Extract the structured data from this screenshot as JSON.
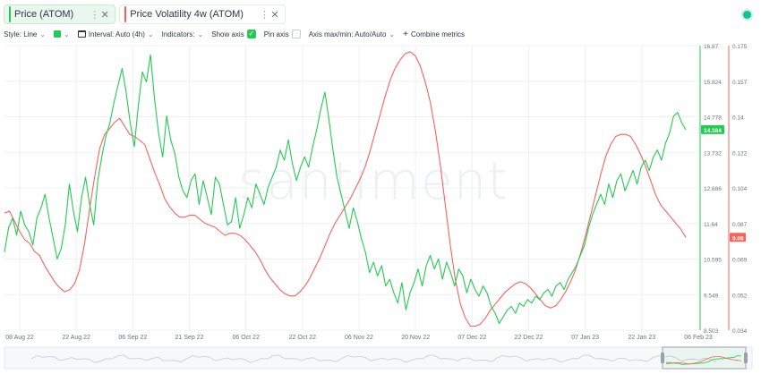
{
  "tabs": [
    {
      "label": "Price (ATOM)",
      "color": "#26c953",
      "active": true
    },
    {
      "label": "Price Volatility 4w (ATOM)",
      "color": "#ff5b5b",
      "active": false
    }
  ],
  "toolbar": {
    "style": "Style: Line",
    "interval": "Interval: Auto (4h)",
    "indicators": "Indicators:",
    "show_axis": "Show axis",
    "pin_axis": "Pin axis",
    "axis_maxmin": "Axis max/min: Auto/Auto",
    "combine": "Combine metrics"
  },
  "watermark": "santiment",
  "chart_data": {
    "type": "line",
    "x_ticks": [
      "08 Aug 22",
      "22 Aug 22",
      "06 Sep 22",
      "21 Sep 22",
      "06 Oct 22",
      "22 Oct 22",
      "06 Nov 22",
      "20 Nov 22",
      "07 Dec 22",
      "22 Dec 22",
      "07 Jan 23",
      "22 Jan 23",
      "06 Feb 23"
    ],
    "price_axis_ticks": [
      "16.87",
      "15.824",
      "14.778",
      "13.732",
      "12.686",
      "11.64",
      "10.595",
      "9.549",
      "8.503"
    ],
    "volatility_axis_ticks": [
      "0.175",
      "0.157",
      "0.14",
      "0.122",
      "0.104",
      "0.087",
      "0.069",
      "0.052",
      "0.034"
    ],
    "price_ylim": [
      8.503,
      16.87
    ],
    "volatility_ylim": [
      0.034,
      0.175
    ],
    "price_last": "14.384",
    "volatility_last": "0.08",
    "series": [
      {
        "name": "Price (ATOM)",
        "color": "#26c953",
        "values": [
          10.8,
          11.5,
          11.8,
          11.3,
          12.0,
          11.6,
          11.4,
          11.0,
          11.8,
          12.1,
          12.5,
          11.8,
          11.2,
          10.6,
          10.9,
          11.6,
          12.8,
          12.0,
          11.4,
          12.4,
          13.0,
          12.2,
          11.6,
          12.9,
          13.6,
          14.2,
          14.6,
          15.2,
          15.7,
          16.2,
          15.5,
          14.6,
          13.9,
          15.1,
          16.1,
          15.8,
          16.6,
          15.3,
          14.3,
          13.6,
          14.8,
          14.1,
          13.7,
          13.0,
          12.6,
          12.4,
          12.9,
          13.1,
          12.2,
          12.9,
          12.4,
          11.9,
          13.0,
          12.8,
          12.2,
          11.6,
          11.7,
          12.4,
          11.5,
          11.9,
          12.4,
          12.1,
          12.8,
          12.5,
          12.2,
          12.7,
          13.0,
          13.3,
          13.8,
          13.5,
          14.1,
          13.4,
          12.9,
          13.3,
          13.6,
          13.3,
          13.9,
          14.4,
          15.0,
          15.5,
          14.7,
          13.8,
          13.0,
          12.5,
          12.0,
          11.5,
          12.1,
          11.7,
          11.2,
          10.8,
          10.2,
          10.5,
          10.1,
          10.4,
          9.8,
          10.0,
          9.6,
          9.3,
          9.9,
          9.1,
          9.6,
          9.9,
          10.3,
          9.8,
          10.4,
          10.7,
          10.3,
          10.6,
          10.0,
          10.5,
          10.2,
          9.8,
          10.3,
          10.1,
          9.6,
          10.0,
          9.7,
          9.5,
          9.8,
          9.6,
          9.2,
          9.0,
          8.7,
          8.9,
          9.1,
          9.2,
          9.0,
          9.3,
          9.2,
          9.4,
          9.3,
          9.5,
          9.4,
          9.6,
          9.7,
          9.5,
          9.8,
          9.9,
          9.7,
          10.0,
          10.2,
          10.4,
          10.7,
          11.0,
          11.5,
          11.9,
          12.2,
          12.5,
          12.2,
          12.8,
          12.4,
          12.9,
          13.1,
          12.6,
          12.9,
          13.2,
          12.8,
          13.3,
          13.5,
          13.2,
          13.6,
          13.8,
          13.5,
          14.0,
          14.3,
          14.8,
          14.9,
          14.6,
          14.4
        ]
      },
      {
        "name": "Price Volatility 4w (ATOM)",
        "color": "#f4645d",
        "values": [
          0.092,
          0.093,
          0.088,
          0.083,
          0.079,
          0.077,
          0.073,
          0.071,
          0.066,
          0.062,
          0.058,
          0.055,
          0.053,
          0.054,
          0.057,
          0.064,
          0.077,
          0.094,
          0.11,
          0.124,
          0.131,
          0.134,
          0.137,
          0.139,
          0.135,
          0.131,
          0.13,
          0.128,
          0.126,
          0.119,
          0.112,
          0.106,
          0.099,
          0.095,
          0.092,
          0.09,
          0.09,
          0.091,
          0.091,
          0.089,
          0.087,
          0.086,
          0.085,
          0.083,
          0.081,
          0.082,
          0.082,
          0.081,
          0.079,
          0.076,
          0.073,
          0.069,
          0.064,
          0.06,
          0.057,
          0.054,
          0.052,
          0.051,
          0.051,
          0.053,
          0.056,
          0.06,
          0.065,
          0.07,
          0.076,
          0.082,
          0.087,
          0.091,
          0.095,
          0.099,
          0.104,
          0.109,
          0.115,
          0.123,
          0.132,
          0.141,
          0.15,
          0.158,
          0.164,
          0.168,
          0.171,
          0.172,
          0.17,
          0.165,
          0.157,
          0.147,
          0.133,
          0.116,
          0.096,
          0.076,
          0.059,
          0.047,
          0.04,
          0.036,
          0.036,
          0.037,
          0.04,
          0.044,
          0.047,
          0.05,
          0.053,
          0.055,
          0.057,
          0.058,
          0.057,
          0.055,
          0.052,
          0.049,
          0.046,
          0.045,
          0.046,
          0.049,
          0.053,
          0.058,
          0.064,
          0.072,
          0.081,
          0.091,
          0.101,
          0.111,
          0.12,
          0.126,
          0.13,
          0.131,
          0.131,
          0.13,
          0.126,
          0.121,
          0.115,
          0.108,
          0.101,
          0.096,
          0.093,
          0.09,
          0.087,
          0.084,
          0.08
        ]
      }
    ]
  }
}
